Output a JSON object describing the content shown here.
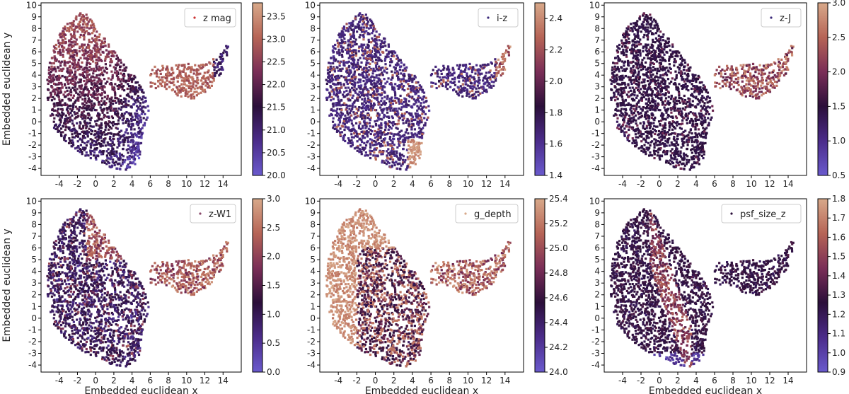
{
  "figure": {
    "shared_xlabel": "Embedded euclidean x",
    "shared_ylabel": "Embedded euclidean y"
  },
  "colormap": {
    "name": "twilight-like",
    "stops": [
      "#6a5acd",
      "#4b2c8a",
      "#2b0f3a",
      "#7a2e57",
      "#b66456",
      "#d8a98a"
    ]
  },
  "chart_data": [
    {
      "type": "scatter",
      "legend": "z mag",
      "legend_marker_color": "#cc3333",
      "xlim": [
        -6,
        16
      ],
      "ylim": [
        -4.6,
        10.2
      ],
      "xticks": [
        "-4",
        "-2",
        "0",
        "2",
        "4",
        "6",
        "8",
        "10",
        "12",
        "14"
      ],
      "yticks": [
        "-4",
        "-3",
        "-2",
        "-1",
        "0",
        "1",
        "2",
        "3",
        "4",
        "5",
        "6",
        "7",
        "8",
        "9",
        "10"
      ],
      "xlabel": "",
      "ylabel": "Embedded euclidean y",
      "colorbar": {
        "min": 20.0,
        "max": 23.8,
        "ticks": [
          "20.0",
          "20.5",
          "21.0",
          "21.5",
          "22.0",
          "22.5",
          "23.0",
          "23.5"
        ]
      },
      "pattern": "zmag"
    },
    {
      "type": "scatter",
      "legend": "i-z",
      "legend_marker_color": "#3b2a7a",
      "xlim": [
        -6,
        16
      ],
      "ylim": [
        -4.6,
        10.2
      ],
      "xticks": [
        "-4",
        "-2",
        "0",
        "2",
        "4",
        "6",
        "8",
        "10",
        "12",
        "14"
      ],
      "yticks": [
        "-4",
        "-3",
        "-2",
        "-1",
        "0",
        "1",
        "2",
        "3",
        "4",
        "5",
        "6",
        "7",
        "8",
        "9",
        "10"
      ],
      "xlabel": "",
      "ylabel": "",
      "colorbar": {
        "min": 1.4,
        "max": 2.5,
        "ticks": [
          "1.4",
          "1.6",
          "1.8",
          "2.0",
          "2.2",
          "2.4"
        ]
      },
      "pattern": "iz"
    },
    {
      "type": "scatter",
      "legend": "z-J",
      "legend_marker_color": "#3b2a7a",
      "xlim": [
        -6,
        16
      ],
      "ylim": [
        -4.6,
        10.2
      ],
      "xticks": [
        "-4",
        "-2",
        "0",
        "2",
        "4",
        "6",
        "8",
        "10",
        "12",
        "14"
      ],
      "yticks": [
        "-4",
        "-3",
        "-2",
        "-1",
        "0",
        "1",
        "2",
        "3",
        "4",
        "5",
        "6",
        "7",
        "8",
        "9",
        "10"
      ],
      "xlabel": "",
      "ylabel": "",
      "colorbar": {
        "min": 0.5,
        "max": 3.0,
        "ticks": [
          "0.5",
          "1.0",
          "1.5",
          "2.0",
          "2.5",
          "3.0"
        ]
      },
      "pattern": "zj"
    },
    {
      "type": "scatter",
      "legend": "z-W1",
      "legend_marker_color": "#8a4a6a",
      "xlim": [
        -6,
        16
      ],
      "ylim": [
        -4.6,
        10.2
      ],
      "xticks": [
        "-4",
        "-2",
        "0",
        "2",
        "4",
        "6",
        "8",
        "10",
        "12",
        "14"
      ],
      "yticks": [
        "-4",
        "-3",
        "-2",
        "-1",
        "0",
        "1",
        "2",
        "3",
        "4",
        "5",
        "6",
        "7",
        "8",
        "9",
        "10"
      ],
      "xlabel": "Embedded euclidean x",
      "ylabel": "Embedded euclidean y",
      "colorbar": {
        "min": 0.0,
        "max": 3.0,
        "ticks": [
          "0.0",
          "0.5",
          "1.0",
          "1.5",
          "2.0",
          "2.5",
          "3.0"
        ]
      },
      "pattern": "zw1"
    },
    {
      "type": "scatter",
      "legend": "g_depth",
      "legend_marker_color": "#d8a98a",
      "xlim": [
        -6,
        16
      ],
      "ylim": [
        -4.6,
        10.2
      ],
      "xticks": [
        "-4",
        "-2",
        "0",
        "2",
        "4",
        "6",
        "8",
        "10",
        "12",
        "14"
      ],
      "yticks": [
        "-4",
        "-3",
        "-2",
        "-1",
        "0",
        "1",
        "2",
        "3",
        "4",
        "5",
        "6",
        "7",
        "8",
        "9",
        "10"
      ],
      "xlabel": "Embedded euclidean x",
      "ylabel": "",
      "colorbar": {
        "min": 24.0,
        "max": 25.4,
        "ticks": [
          "24.0",
          "24.2",
          "24.4",
          "24.6",
          "24.8",
          "25.0",
          "25.2",
          "25.4"
        ]
      },
      "pattern": "gdepth"
    },
    {
      "type": "scatter",
      "legend": "psf_size_z",
      "legend_marker_color": "#2b0f3a",
      "xlim": [
        -6,
        16
      ],
      "ylim": [
        -4.6,
        10.2
      ],
      "xticks": [
        "-4",
        "-2",
        "0",
        "2",
        "4",
        "6",
        "8",
        "10",
        "12",
        "14"
      ],
      "yticks": [
        "-4",
        "-3",
        "-2",
        "-1",
        "0",
        "1",
        "2",
        "3",
        "4",
        "5",
        "6",
        "7",
        "8",
        "9",
        "10"
      ],
      "xlabel": "Embedded euclidean x",
      "ylabel": "",
      "colorbar": {
        "min": 0.9,
        "max": 1.8,
        "ticks": [
          "0.9",
          "1.0",
          "1.1",
          "1.2",
          "1.3",
          "1.4",
          "1.5",
          "1.6",
          "1.7",
          "1.8"
        ]
      },
      "pattern": "psf"
    }
  ]
}
